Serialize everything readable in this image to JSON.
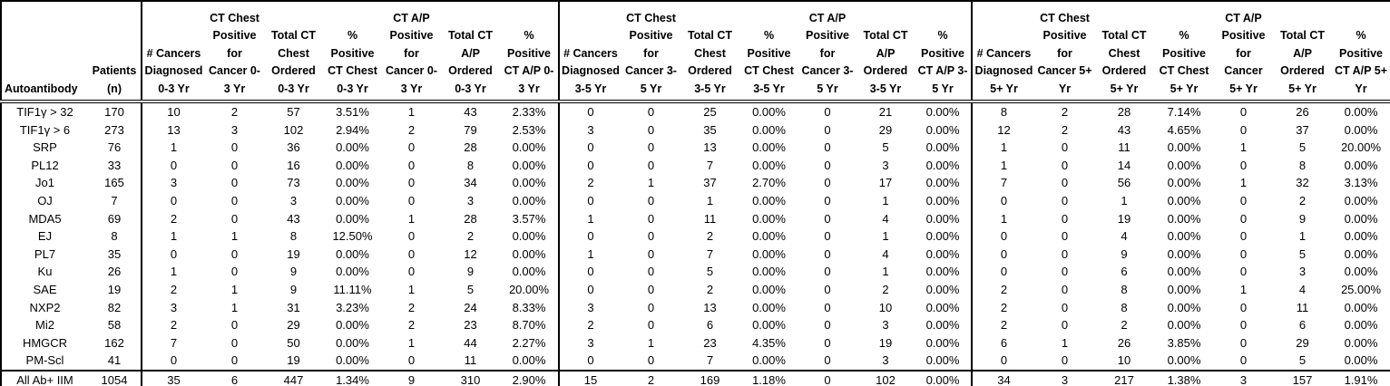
{
  "chart_data": {
    "type": "table",
    "corner": {
      "autoantibody_header": "Autoantibody",
      "patients_header": "Patients\n(n)"
    },
    "period_groups": [
      "0-3 Yr",
      "3-5 Yr",
      "5+ Yr"
    ],
    "groups": [
      {
        "period": "0-3 Yr",
        "headers": [
          "# Cancers\nDiagnosed\n0-3 Yr",
          "CT Chest\nPositive\nfor\nCancer 0-\n3 Yr",
          "Total CT\nChest\nOrdered\n0-3 Yr",
          "%\nPositive\nCT Chest\n0-3 Yr",
          "CT A/P\nPositive\nfor\nCancer 0-\n3 Yr",
          "Total CT\nA/P\nOrdered\n0-3 Yr",
          "%\nPositive\nCT A/P 0-\n3 Yr"
        ]
      },
      {
        "period": "3-5 Yr",
        "headers": [
          "# Cancers\nDiagnosed\n3-5 Yr",
          "CT Chest\nPositive\nfor\nCancer 3-\n5 Yr",
          "Total CT\nChest\nOrdered\n3-5 Yr",
          "%\nPositive\nCT Chest\n3-5 Yr",
          "CT A/P\nPositive\nfor\nCancer 3-\n5 Yr",
          "Total CT\nA/P\nOrdered\n3-5 Yr",
          "%\nPositive\nCT A/P 3-\n5 Yr"
        ]
      },
      {
        "period": "5+ Yr",
        "headers": [
          "# Cancers\nDiagnosed\n5+ Yr",
          "CT Chest\nPositive\nfor\nCancer 5+\nYr",
          "Total CT\nChest\nOrdered\n5+ Yr",
          "%\nPositive\nCT Chest\n5+ Yr",
          "CT A/P\nPositive\nfor\nCancer\n5+ Yr",
          "Total CT\nA/P\nOrdered\n5+ Yr",
          "%\nPositive\nCT A/P 5+\nYr"
        ]
      }
    ],
    "rows": [
      {
        "autoantibody": "TIF1γ > 32",
        "patients": "170",
        "cells": [
          "10",
          "2",
          "57",
          "3.51%",
          "1",
          "43",
          "2.33%",
          "0",
          "0",
          "25",
          "0.00%",
          "0",
          "21",
          "0.00%",
          "8",
          "2",
          "28",
          "7.14%",
          "0",
          "26",
          "0.00%"
        ]
      },
      {
        "autoantibody": "TIF1γ > 6",
        "patients": "273",
        "cells": [
          "13",
          "3",
          "102",
          "2.94%",
          "2",
          "79",
          "2.53%",
          "3",
          "0",
          "35",
          "0.00%",
          "0",
          "29",
          "0.00%",
          "12",
          "2",
          "43",
          "4.65%",
          "0",
          "37",
          "0.00%"
        ]
      },
      {
        "autoantibody": "SRP",
        "patients": "76",
        "cells": [
          "1",
          "0",
          "36",
          "0.00%",
          "0",
          "28",
          "0.00%",
          "0",
          "0",
          "13",
          "0.00%",
          "0",
          "5",
          "0.00%",
          "1",
          "0",
          "11",
          "0.00%",
          "1",
          "5",
          "20.00%"
        ]
      },
      {
        "autoantibody": "PL12",
        "patients": "33",
        "cells": [
          "0",
          "0",
          "16",
          "0.00%",
          "0",
          "8",
          "0.00%",
          "0",
          "0",
          "7",
          "0.00%",
          "0",
          "3",
          "0.00%",
          "1",
          "0",
          "14",
          "0.00%",
          "0",
          "8",
          "0.00%"
        ]
      },
      {
        "autoantibody": "Jo1",
        "patients": "165",
        "cells": [
          "3",
          "0",
          "73",
          "0.00%",
          "0",
          "34",
          "0.00%",
          "2",
          "1",
          "37",
          "2.70%",
          "0",
          "17",
          "0.00%",
          "7",
          "0",
          "56",
          "0.00%",
          "1",
          "32",
          "3.13%"
        ]
      },
      {
        "autoantibody": "OJ",
        "patients": "7",
        "cells": [
          "0",
          "0",
          "3",
          "0.00%",
          "0",
          "3",
          "0.00%",
          "0",
          "0",
          "1",
          "0.00%",
          "0",
          "1",
          "0.00%",
          "0",
          "0",
          "1",
          "0.00%",
          "0",
          "2",
          "0.00%"
        ]
      },
      {
        "autoantibody": "MDA5",
        "patients": "69",
        "cells": [
          "2",
          "0",
          "43",
          "0.00%",
          "1",
          "28",
          "3.57%",
          "1",
          "0",
          "11",
          "0.00%",
          "0",
          "4",
          "0.00%",
          "1",
          "0",
          "19",
          "0.00%",
          "0",
          "9",
          "0.00%"
        ]
      },
      {
        "autoantibody": "EJ",
        "patients": "8",
        "cells": [
          "1",
          "1",
          "8",
          "12.50%",
          "0",
          "2",
          "0.00%",
          "0",
          "0",
          "2",
          "0.00%",
          "0",
          "1",
          "0.00%",
          "0",
          "0",
          "4",
          "0.00%",
          "0",
          "1",
          "0.00%"
        ]
      },
      {
        "autoantibody": "PL7",
        "patients": "35",
        "cells": [
          "0",
          "0",
          "19",
          "0.00%",
          "0",
          "12",
          "0.00%",
          "1",
          "0",
          "7",
          "0.00%",
          "0",
          "4",
          "0.00%",
          "0",
          "0",
          "9",
          "0.00%",
          "0",
          "5",
          "0.00%"
        ]
      },
      {
        "autoantibody": "Ku",
        "patients": "26",
        "cells": [
          "1",
          "0",
          "9",
          "0.00%",
          "0",
          "9",
          "0.00%",
          "0",
          "0",
          "5",
          "0.00%",
          "0",
          "1",
          "0.00%",
          "0",
          "0",
          "6",
          "0.00%",
          "0",
          "3",
          "0.00%"
        ]
      },
      {
        "autoantibody": "SAE",
        "patients": "19",
        "cells": [
          "2",
          "1",
          "9",
          "11.11%",
          "1",
          "5",
          "20.00%",
          "0",
          "0",
          "2",
          "0.00%",
          "0",
          "2",
          "0.00%",
          "2",
          "0",
          "8",
          "0.00%",
          "1",
          "4",
          "25.00%"
        ]
      },
      {
        "autoantibody": "NXP2",
        "patients": "82",
        "cells": [
          "3",
          "1",
          "31",
          "3.23%",
          "2",
          "24",
          "8.33%",
          "3",
          "0",
          "13",
          "0.00%",
          "0",
          "10",
          "0.00%",
          "2",
          "0",
          "8",
          "0.00%",
          "0",
          "11",
          "0.00%"
        ]
      },
      {
        "autoantibody": "Mi2",
        "patients": "58",
        "cells": [
          "2",
          "0",
          "29",
          "0.00%",
          "2",
          "23",
          "8.70%",
          "2",
          "0",
          "6",
          "0.00%",
          "0",
          "3",
          "0.00%",
          "2",
          "0",
          "2",
          "0.00%",
          "0",
          "6",
          "0.00%"
        ]
      },
      {
        "autoantibody": "HMGCR",
        "patients": "162",
        "cells": [
          "7",
          "0",
          "50",
          "0.00%",
          "1",
          "44",
          "2.27%",
          "3",
          "1",
          "23",
          "4.35%",
          "0",
          "19",
          "0.00%",
          "6",
          "1",
          "26",
          "3.85%",
          "0",
          "29",
          "0.00%"
        ]
      },
      {
        "autoantibody": "PM-Scl",
        "patients": "41",
        "cells": [
          "0",
          "0",
          "19",
          "0.00%",
          "0",
          "11",
          "0.00%",
          "0",
          "0",
          "7",
          "0.00%",
          "0",
          "3",
          "0.00%",
          "0",
          "0",
          "10",
          "0.00%",
          "0",
          "5",
          "0.00%"
        ]
      }
    ],
    "total_row": {
      "autoantibody": "All Ab+ IIM",
      "patients": "1054",
      "cells": [
        "35",
        "6",
        "447",
        "1.34%",
        "9",
        "310",
        "2.90%",
        "15",
        "2",
        "169",
        "1.18%",
        "0",
        "102",
        "0.00%",
        "34",
        "3",
        "217",
        "1.38%",
        "3",
        "157",
        "1.91%"
      ]
    }
  }
}
